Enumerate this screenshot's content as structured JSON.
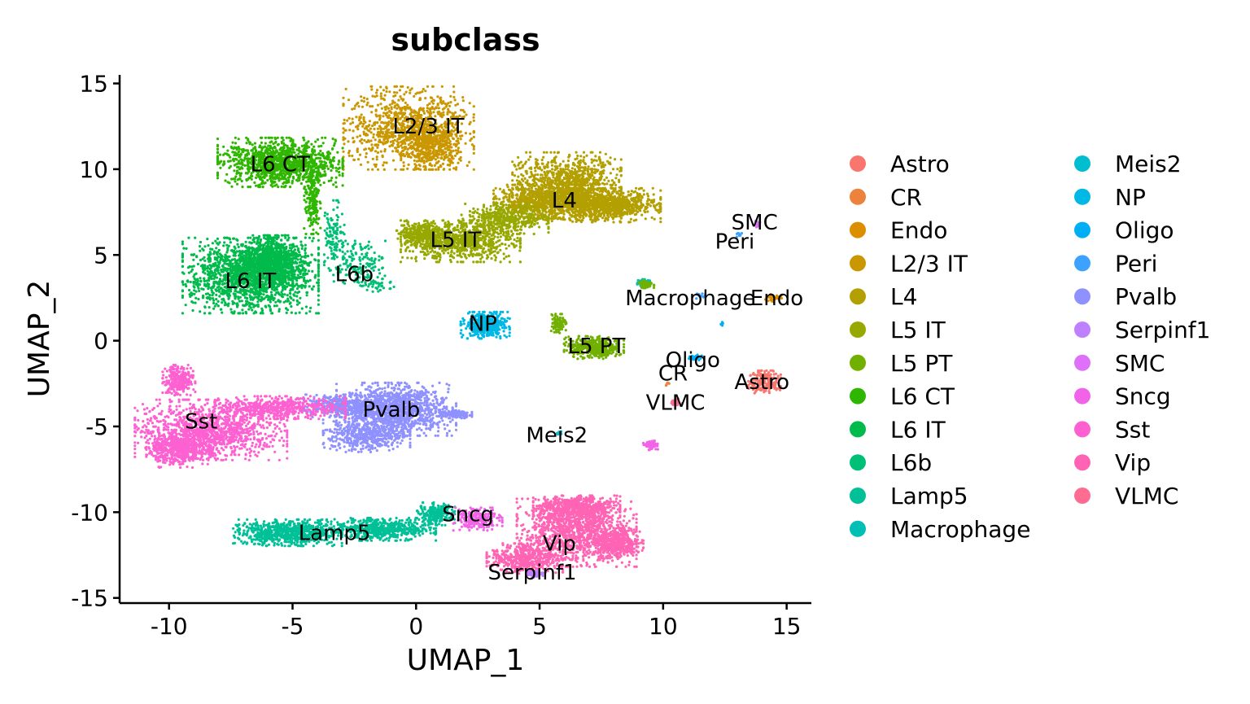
{
  "chart_data": {
    "type": "scatter",
    "title": "subclass",
    "xlabel": "UMAP_1",
    "ylabel": "UMAP_2",
    "xlim": [
      -12,
      16
    ],
    "ylim": [
      -15.3,
      15.5
    ],
    "xticks": [
      -10,
      -5,
      0,
      5,
      10,
      15
    ],
    "yticks": [
      15,
      10,
      5,
      0,
      -5,
      -10,
      -15
    ],
    "xtick_labels": [
      "-10",
      "-5",
      "0",
      "5",
      "10",
      "15"
    ],
    "ytick_labels": [
      "15",
      "10",
      "5",
      "0",
      "-5",
      "-10",
      "-15"
    ],
    "grid": false,
    "legend_position": "right",
    "legend": [
      {
        "name": "Astro",
        "color": "#F8766D"
      },
      {
        "name": "CR",
        "color": "#EC823C"
      },
      {
        "name": "Endo",
        "color": "#DD8D00"
      },
      {
        "name": "L2/3 IT",
        "color": "#CA9700"
      },
      {
        "name": "L4",
        "color": "#B3A000"
      },
      {
        "name": "L5 IT",
        "color": "#97A900"
      },
      {
        "name": "L5 PT",
        "color": "#71B000"
      },
      {
        "name": "L6 CT",
        "color": "#2FB600"
      },
      {
        "name": "L6 IT",
        "color": "#00BB4B"
      },
      {
        "name": "L6b",
        "color": "#00BF76"
      },
      {
        "name": "Lamp5",
        "color": "#00C098"
      },
      {
        "name": "Macrophage",
        "color": "#00C0B5"
      },
      {
        "name": "Meis2",
        "color": "#00BDCF"
      },
      {
        "name": "NP",
        "color": "#00B8E5"
      },
      {
        "name": "Oligo",
        "color": "#00AEF6"
      },
      {
        "name": "Peri",
        "color": "#3DA1FF"
      },
      {
        "name": "Pvalb",
        "color": "#8F91FF"
      },
      {
        "name": "Serpinf1",
        "color": "#BE80FF"
      },
      {
        "name": "SMC",
        "color": "#DE70F9"
      },
      {
        "name": "Sncg",
        "color": "#F264E7"
      },
      {
        "name": "Sst",
        "color": "#FD61D1"
      },
      {
        "name": "Vip",
        "color": "#FF64B4"
      },
      {
        "name": "VLMC",
        "color": "#FF6C91"
      }
    ],
    "cluster_labels": [
      {
        "text": "L2/3 IT",
        "x": 0.5,
        "y": 12.5
      },
      {
        "text": "L6 CT",
        "x": -5.5,
        "y": 10.3
      },
      {
        "text": "L4",
        "x": 6.0,
        "y": 8.2
      },
      {
        "text": "L5 IT",
        "x": 1.6,
        "y": 5.9
      },
      {
        "text": "SMC",
        "x": 13.7,
        "y": 6.9
      },
      {
        "text": "Peri",
        "x": 12.9,
        "y": 5.8
      },
      {
        "text": "L6b",
        "x": -2.5,
        "y": 3.9
      },
      {
        "text": "L6 IT",
        "x": -6.7,
        "y": 3.5
      },
      {
        "text": "Macrophage",
        "x": 11.1,
        "y": 2.5
      },
      {
        "text": "Endo",
        "x": 14.6,
        "y": 2.5
      },
      {
        "text": "NP",
        "x": 2.7,
        "y": 1.0
      },
      {
        "text": "L5 PT",
        "x": 7.3,
        "y": -0.3
      },
      {
        "text": "Oligo",
        "x": 11.2,
        "y": -1.1
      },
      {
        "text": "CR",
        "x": 10.4,
        "y": -1.9
      },
      {
        "text": "Astro",
        "x": 14.0,
        "y": -2.4
      },
      {
        "text": "VLMC",
        "x": 10.5,
        "y": -3.6
      },
      {
        "text": "Pvalb",
        "x": -1.0,
        "y": -4.0
      },
      {
        "text": "Sst",
        "x": -8.7,
        "y": -4.7
      },
      {
        "text": "Meis2",
        "x": 5.7,
        "y": -5.5
      },
      {
        "text": "Sncg",
        "x": 2.1,
        "y": -10.1
      },
      {
        "text": "Lamp5",
        "x": -3.3,
        "y": -11.2
      },
      {
        "text": "Vip",
        "x": 5.8,
        "y": -11.8
      },
      {
        "text": "Serpinf1",
        "x": 4.7,
        "y": -13.5
      }
    ],
    "clusters": [
      {
        "name": "L2/3 IT",
        "n": 1400,
        "shapes": [
          {
            "x": -0.3,
            "y": 12.4,
            "sx": 1.2,
            "sy": 1.1,
            "w": 1
          },
          {
            "x": 0.6,
            "y": 11.3,
            "sx": 0.55,
            "sy": 0.6,
            "w": 0.4
          }
        ]
      },
      {
        "name": "L6 CT",
        "n": 1200,
        "shapes": [
          {
            "x": -5.5,
            "y": 10.4,
            "sx": 1.15,
            "sy": 0.65,
            "w": 1
          }
        ]
      },
      {
        "name": "L6 CT",
        "n": 200,
        "shapes": [
          {
            "x": -4.2,
            "y": 8.2,
            "sx": 0.15,
            "sy": 0.9,
            "w": 1
          }
        ]
      },
      {
        "name": "L6b",
        "n": 300,
        "shapes": [
          {
            "x": -2.4,
            "y": 4.5,
            "sx": 0.6,
            "sy": 0.6,
            "w": 1
          },
          {
            "x": -3.3,
            "y": 6.2,
            "sx": 0.18,
            "sy": 0.9,
            "w": 0.6
          },
          {
            "x": -1.5,
            "y": 3.3,
            "sx": 0.4,
            "sy": 0.2,
            "w": 0.3
          }
        ]
      },
      {
        "name": "L4",
        "n": 2600,
        "shapes": [
          {
            "x": 6.1,
            "y": 9.0,
            "sx": 1.0,
            "sy": 0.9,
            "w": 1
          },
          {
            "x": 7.7,
            "y": 7.9,
            "sx": 1.0,
            "sy": 0.45,
            "w": 0.8
          },
          {
            "x": 4.9,
            "y": 8.1,
            "sx": 0.8,
            "sy": 0.45,
            "w": 0.6
          }
        ]
      },
      {
        "name": "L5 IT",
        "n": 1500,
        "shapes": [
          {
            "x": 1.8,
            "y": 5.8,
            "sx": 1.1,
            "sy": 0.55,
            "w": 1
          },
          {
            "x": 3.6,
            "y": 7.1,
            "sx": 0.8,
            "sy": 0.4,
            "w": 0.6
          },
          {
            "x": 0.2,
            "y": 6.2,
            "sx": 0.45,
            "sy": 0.35,
            "w": 0.4
          }
        ]
      },
      {
        "name": "L6 IT",
        "n": 2400,
        "shapes": [
          {
            "x": -6.7,
            "y": 3.8,
            "sx": 1.25,
            "sy": 1.0,
            "w": 1
          },
          {
            "x": -5.8,
            "y": 4.6,
            "sx": 0.6,
            "sy": 0.7,
            "w": 0.5
          }
        ]
      },
      {
        "name": "NP",
        "n": 500,
        "shapes": [
          {
            "x": 2.8,
            "y": 0.9,
            "sx": 0.45,
            "sy": 0.35,
            "w": 1
          }
        ]
      },
      {
        "name": "L5 PT",
        "n": 500,
        "shapes": [
          {
            "x": 7.2,
            "y": -0.4,
            "sx": 0.55,
            "sy": 0.3,
            "w": 1
          },
          {
            "x": 5.8,
            "y": 1.0,
            "sx": 0.15,
            "sy": 0.25,
            "w": 0.25
          }
        ]
      },
      {
        "name": "Pvalb",
        "n": 2200,
        "shapes": [
          {
            "x": -0.8,
            "y": -4.0,
            "sx": 1.1,
            "sy": 0.7,
            "w": 1
          },
          {
            "x": -2.0,
            "y": -5.5,
            "sx": 0.8,
            "sy": 0.45,
            "w": 0.4
          },
          {
            "x": 1.6,
            "y": -4.3,
            "sx": 0.3,
            "sy": 0.1,
            "w": 0.1
          },
          {
            "x": -3.0,
            "y": -3.8,
            "sx": 0.7,
            "sy": 0.3,
            "w": 0.3
          }
        ]
      },
      {
        "name": "Sst",
        "n": 2500,
        "shapes": [
          {
            "x": -8.3,
            "y": -5.2,
            "sx": 1.4,
            "sy": 0.8,
            "w": 1
          },
          {
            "x": -9.6,
            "y": -6.3,
            "sx": 0.6,
            "sy": 0.5,
            "w": 0.5
          },
          {
            "x": -9.6,
            "y": -2.3,
            "sx": 0.3,
            "sy": 0.4,
            "w": 0.25
          },
          {
            "x": -5.5,
            "y": -3.9,
            "sx": 1.2,
            "sy": 0.3,
            "w": 0.5
          }
        ]
      },
      {
        "name": "Lamp5",
        "n": 1500,
        "shapes": [
          {
            "x": -5.2,
            "y": -11.2,
            "sx": 1.0,
            "sy": 0.35,
            "w": 1
          },
          {
            "x": -1.4,
            "y": -11.0,
            "sx": 1.0,
            "sy": 0.3,
            "w": 0.8
          },
          {
            "x": 0.8,
            "y": -10.1,
            "sx": 0.35,
            "sy": 0.3,
            "w": 0.3
          }
        ]
      },
      {
        "name": "Sncg",
        "n": 250,
        "shapes": [
          {
            "x": 2.5,
            "y": -10.4,
            "sx": 0.45,
            "sy": 0.3,
            "w": 1
          }
        ]
      },
      {
        "name": "Vip",
        "n": 2600,
        "shapes": [
          {
            "x": 6.5,
            "y": -11.2,
            "sx": 1.1,
            "sy": 0.9,
            "w": 1
          },
          {
            "x": 6.5,
            "y": -9.8,
            "sx": 0.8,
            "sy": 0.35,
            "w": 0.6
          },
          {
            "x": 4.4,
            "y": -12.7,
            "sx": 0.7,
            "sy": 0.4,
            "w": 0.5
          },
          {
            "x": 8.1,
            "y": -11.8,
            "sx": 0.5,
            "sy": 0.4,
            "w": 0.4
          }
        ]
      },
      {
        "name": "Serpinf1",
        "n": 60,
        "shapes": [
          {
            "x": 4.8,
            "y": -13.6,
            "sx": 0.15,
            "sy": 0.1,
            "w": 1
          }
        ]
      },
      {
        "name": "Astro",
        "n": 200,
        "shapes": [
          {
            "x": 14.1,
            "y": -2.4,
            "sx": 0.3,
            "sy": 0.3,
            "w": 1
          }
        ]
      },
      {
        "name": "Macrophage",
        "n": 50,
        "shapes": [
          {
            "x": 9.2,
            "y": 3.4,
            "sx": 0.12,
            "sy": 0.1,
            "w": 1
          }
        ]
      },
      {
        "name": "Meis2",
        "n": 15,
        "shapes": [
          {
            "x": 5.8,
            "y": -5.4,
            "sx": 0.05,
            "sy": 0.05,
            "w": 1
          }
        ]
      },
      {
        "name": "Oligo",
        "n": 40,
        "shapes": [
          {
            "x": 11.3,
            "y": -1.0,
            "sx": 0.12,
            "sy": 0.08,
            "w": 1
          },
          {
            "x": 12.4,
            "y": 1.0,
            "sx": 0.05,
            "sy": 0.08,
            "w": 0.4
          }
        ]
      },
      {
        "name": "Endo",
        "n": 40,
        "shapes": [
          {
            "x": 14.4,
            "y": 2.5,
            "sx": 0.18,
            "sy": 0.1,
            "w": 1
          }
        ]
      },
      {
        "name": "Peri",
        "n": 20,
        "shapes": [
          {
            "x": 13.1,
            "y": 6.2,
            "sx": 0.08,
            "sy": 0.08,
            "w": 1
          },
          {
            "x": 11.5,
            "y": 2.6,
            "sx": 0.15,
            "sy": 0.08,
            "w": 0.8
          }
        ]
      },
      {
        "name": "SMC",
        "n": 15,
        "shapes": [
          {
            "x": 13.8,
            "y": 6.8,
            "sx": 0.06,
            "sy": 0.08,
            "w": 1
          }
        ]
      },
      {
        "name": "VLMC",
        "n": 40,
        "shapes": [
          {
            "x": 10.5,
            "y": -3.6,
            "sx": 0.15,
            "sy": 0.12,
            "w": 1
          }
        ]
      },
      {
        "name": "CR",
        "n": 5,
        "shapes": [
          {
            "x": 10.2,
            "y": -2.5,
            "sx": 0.05,
            "sy": 0.05,
            "w": 1
          }
        ]
      },
      {
        "name": "Sncg",
        "n": 60,
        "shapes": [
          {
            "x": 9.5,
            "y": -6.1,
            "sx": 0.15,
            "sy": 0.12,
            "w": 1
          }
        ]
      },
      {
        "name": "L5 PT",
        "n": 60,
        "shapes": [
          {
            "x": 9.3,
            "y": 3.3,
            "sx": 0.15,
            "sy": 0.12,
            "w": 1
          }
        ]
      }
    ]
  }
}
